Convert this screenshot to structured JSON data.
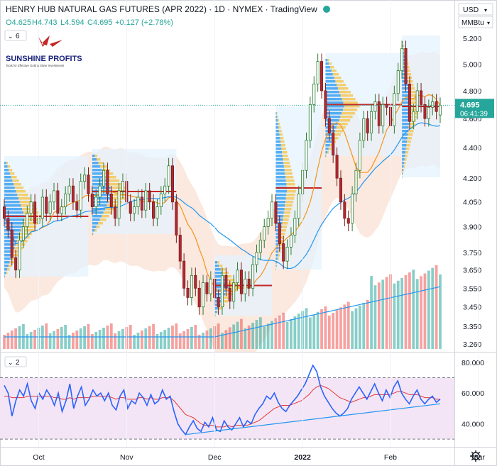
{
  "header": {
    "title": "HENRY HUB NATURAL GAS FUTURES (APR 2022) · 1D · NYMEX · TradingView",
    "ohlc": {
      "open": "O4.625",
      "high": "H4.743",
      "low": "L4.594",
      "close": "C4.695",
      "change": "+0.127 (+2.78%)"
    },
    "indicator_count": "6",
    "rsi_count": "2"
  },
  "price_scale": {
    "currency": "USD",
    "unit": "MMBtu",
    "last_price": "4.695",
    "countdown": "06:41:39"
  },
  "logo": {
    "name": "SUNSHINE PROFITS",
    "tagline": "Tools for Effective Gold & Silver Investments"
  },
  "colors": {
    "up": "#26a69a",
    "down": "#ef5350",
    "candle_up": "#ffffff",
    "candle_down": "#b22833",
    "ma_fast": "#f7931a",
    "ma_slow": "#2196f3",
    "rsi": "#2962ff",
    "rsi_ma": "#e53935",
    "rsi_band": "#f3e5f5",
    "volume_profile_up": "#2196f3",
    "volume_profile_down": "#f5c242",
    "envelope": "#f8d7c5"
  },
  "chart_data": [
    {
      "type": "candlestick",
      "title": "HENRY HUB NATURAL GAS FUTURES (APR 2022)",
      "y_ticks": [
        "5.200",
        "5.000",
        "4.800",
        "4.600",
        "4.400",
        "4.200",
        "4.050",
        "3.900",
        "3.750",
        "3.650",
        "3.550",
        "3.450",
        "3.350",
        "3.260"
      ],
      "x_ticks": [
        "Oct",
        "Nov",
        "Dec",
        "2022",
        "Feb",
        "Mar"
      ],
      "x_tick_index": [
        9,
        32,
        55,
        78,
        101,
        124
      ],
      "ylim": [
        3.26,
        5.24
      ],
      "log_scale": true,
      "series": [
        {
          "name": "Price",
          "close": [
            3.95,
            3.88,
            3.72,
            3.65,
            3.82,
            3.9,
            3.98,
            4.05,
            3.92,
            3.95,
            4.08,
            3.98,
            4.05,
            4.12,
            3.98,
            4.02,
            4.1,
            4.15,
            4.05,
            4.0,
            4.18,
            4.22,
            4.1,
            4.02,
            4.08,
            4.15,
            4.25,
            4.1,
            4.02,
            3.95,
            4.12,
            4.18,
            4.05,
            3.98,
            4.02,
            4.08,
            4.0,
            4.12,
            4.05,
            3.95,
            4.02,
            4.1,
            4.15,
            4.28,
            4.05,
            3.85,
            3.7,
            3.55,
            3.5,
            3.62,
            3.55,
            3.45,
            3.58,
            3.52,
            3.6,
            3.5,
            3.45,
            3.62,
            3.55,
            3.48,
            3.58,
            3.65,
            3.52,
            3.6,
            3.55,
            3.68,
            3.75,
            3.82,
            3.9,
            3.95,
            4.05,
            3.92,
            3.8,
            3.7,
            3.78,
            3.85,
            3.95,
            4.1,
            4.25,
            4.45,
            4.7,
            4.85,
            5.02,
            4.8,
            4.6,
            4.5,
            4.35,
            4.2,
            4.05,
            3.95,
            3.92,
            4.1,
            4.25,
            4.45,
            4.6,
            4.5,
            4.65,
            4.72,
            4.55,
            4.7,
            4.68,
            4.55,
            4.78,
            4.95,
            5.12,
            4.85,
            4.58,
            4.65,
            4.8,
            4.7,
            4.6,
            4.68,
            4.72,
            4.65,
            4.695
          ],
          "open": [
            4.02,
            3.95,
            3.88,
            3.72,
            3.65,
            3.82,
            3.9,
            3.98,
            4.05,
            3.92,
            3.95,
            4.08,
            3.98,
            4.05,
            4.12,
            3.98,
            4.02,
            4.1,
            4.15,
            4.05,
            4.0,
            4.18,
            4.22,
            4.1,
            4.02,
            4.08,
            4.15,
            4.25,
            4.1,
            4.02,
            3.95,
            4.12,
            4.18,
            4.05,
            3.98,
            4.02,
            4.08,
            4.0,
            4.12,
            4.05,
            3.95,
            4.02,
            4.1,
            4.15,
            4.28,
            4.05,
            3.85,
            3.7,
            3.55,
            3.5,
            3.62,
            3.55,
            3.45,
            3.58,
            3.52,
            3.6,
            3.5,
            3.45,
            3.62,
            3.55,
            3.48,
            3.58,
            3.65,
            3.52,
            3.6,
            3.55,
            3.68,
            3.75,
            3.82,
            3.9,
            3.95,
            4.05,
            3.92,
            3.8,
            3.7,
            3.78,
            3.85,
            3.95,
            4.1,
            4.25,
            4.45,
            4.7,
            4.85,
            5.02,
            4.8,
            4.6,
            4.5,
            4.35,
            4.2,
            4.05,
            3.95,
            3.92,
            4.1,
            4.25,
            4.45,
            4.6,
            4.5,
            4.65,
            4.72,
            4.55,
            4.7,
            4.68,
            4.55,
            4.78,
            4.95,
            5.12,
            4.85,
            4.58,
            4.65,
            4.8,
            4.7,
            4.6,
            4.68,
            4.72,
            4.625
          ]
        }
      ]
    },
    {
      "type": "line",
      "title": "RSI",
      "y_ticks": [
        "80.000",
        "60.000",
        "40.000"
      ],
      "ylim": [
        25,
        85
      ],
      "band": [
        30,
        70
      ],
      "series": [
        {
          "name": "RSI",
          "values": [
            65,
            60,
            45,
            55,
            62,
            58,
            66,
            55,
            50,
            60,
            56,
            62,
            58,
            52,
            60,
            48,
            55,
            66,
            50,
            58,
            64,
            52,
            56,
            62,
            58,
            60,
            55,
            60,
            52,
            49,
            58,
            62,
            50,
            55,
            53,
            60,
            57,
            52,
            59,
            53,
            55,
            62,
            56,
            58,
            48,
            40,
            36,
            33,
            38,
            42,
            37,
            35,
            41,
            38,
            44,
            36,
            35,
            42,
            38,
            36,
            40,
            44,
            38,
            42,
            40,
            46,
            50,
            53,
            58,
            56,
            60,
            54,
            50,
            48,
            52,
            55,
            58,
            62,
            66,
            72,
            78,
            74,
            64,
            58,
            54,
            50,
            47,
            45,
            47,
            50,
            56,
            60,
            64,
            60,
            56,
            61,
            66,
            60,
            55,
            62,
            57,
            64,
            68,
            60,
            56,
            53,
            58,
            62,
            56,
            53,
            56,
            58,
            54,
            56
          ]
        },
        {
          "name": "RSI MA",
          "values": [
            58,
            58,
            57,
            57,
            57,
            57,
            58,
            58,
            58,
            58,
            58,
            58,
            58,
            57,
            57,
            56,
            56,
            57,
            56,
            57,
            57,
            57,
            57,
            58,
            58,
            58,
            58,
            58,
            57,
            56,
            57,
            57,
            56,
            56,
            56,
            57,
            57,
            56,
            57,
            56,
            56,
            57,
            57,
            57,
            55,
            52,
            49,
            46,
            45,
            44,
            42,
            40,
            39,
            39,
            39,
            38,
            38,
            38,
            39,
            38,
            39,
            39,
            39,
            39,
            40,
            41,
            42,
            44,
            46,
            48,
            50,
            51,
            52,
            52,
            52,
            53,
            54,
            55,
            57,
            59,
            62,
            64,
            65,
            64,
            63,
            61,
            59,
            57,
            56,
            55,
            54,
            55,
            56,
            57,
            57,
            58,
            59,
            59,
            59,
            59,
            59,
            60,
            61,
            61,
            60,
            59,
            59,
            59,
            58,
            57,
            57,
            57,
            56,
            56
          ]
        }
      ]
    }
  ]
}
